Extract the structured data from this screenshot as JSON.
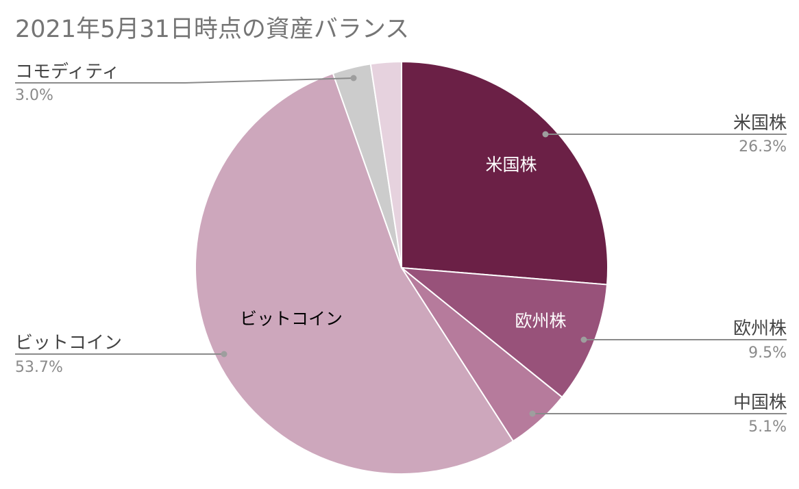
{
  "chart_data": {
    "type": "pie",
    "title": "2021年5月31日時点の資産バランス",
    "start_angle_deg": 0,
    "direction": "clockwise",
    "legend": "none",
    "slices": [
      {
        "label": "米国株",
        "value": 26.3,
        "percent_label": "26.3%",
        "inner_label": "米国株",
        "color": "#6b2046",
        "inner_text_color": "#ffffff"
      },
      {
        "label": "欧州株",
        "value": 9.5,
        "percent_label": "9.5%",
        "inner_label": "欧州株",
        "color": "#98527a",
        "inner_text_color": "#ffffff"
      },
      {
        "label": "中国株",
        "value": 5.1,
        "percent_label": "5.1%",
        "inner_label": "",
        "color": "#b67b9c",
        "inner_text_color": "#ffffff"
      },
      {
        "label": "ビットコイン",
        "value": 53.7,
        "percent_label": "53.7%",
        "inner_label": "ビットコイン",
        "color": "#cda7bc",
        "inner_text_color": "#000000"
      },
      {
        "label": "コモディティ",
        "value": 3.0,
        "percent_label": "3.0%",
        "inner_label": "",
        "color": "#cccccc",
        "inner_text_color": "#000000"
      },
      {
        "label": "",
        "value": 2.4,
        "percent_label": "",
        "inner_label": "",
        "color": "#e6d2de",
        "inner_text_color": "#000000"
      }
    ]
  }
}
